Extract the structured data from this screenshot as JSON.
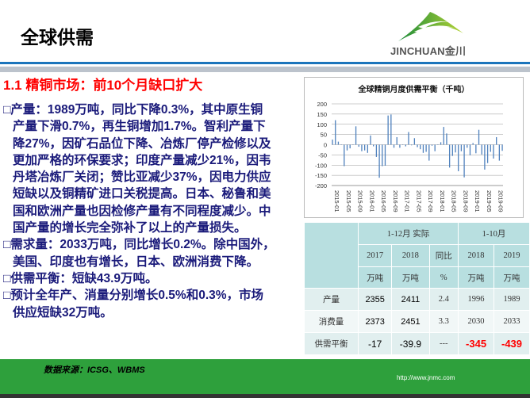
{
  "header": {
    "title": "全球供需",
    "logo_text": "JINCHUAN金川"
  },
  "subtitle": "1.1 精铜市场：前10个月缺口扩大",
  "bullets": [
    {
      "lines": [
        "□产量：1989万吨，同比下降0.3%，其中原生铜",
        "产量下滑0.7%，再生铜增加1.7%。智利产量下",
        "降27%，因矿石品位下降、冶炼厂停产检修以及",
        "更加严格的环保要求；印度产量减少21%，因韦",
        "丹塔冶炼厂关闭；赞比亚减少37%，因电力供应",
        "短缺以及铜精矿进口关税提高。日本、秘鲁和美",
        "国和欧洲产量也因检修产量有不同程度减少。中",
        "国产量的增长完全弥补了以上的产量损失。"
      ]
    },
    {
      "lines": [
        "□需求量：2033万吨，同比增长0.2%。除中国外，",
        "美国、印度也有增长，日本、欧洲消费下降。"
      ]
    },
    {
      "lines": [
        "□供需平衡：短缺43.9万吨。"
      ]
    },
    {
      "lines": [
        "□预计全年产、消量分别增长0.5%和0.3%，市场",
        "供应短缺32万吨。"
      ]
    }
  ],
  "chart_data": {
    "type": "bar",
    "title": "全球精铜月度供需平衡（千吨）",
    "ylim": [
      -200,
      200
    ],
    "yticks": [
      200,
      150,
      100,
      50,
      0,
      -50,
      -100,
      -150,
      -200
    ],
    "grid": true,
    "color": "#4f81bd",
    "xtick_labels": [
      "2015-01",
      "2015-05",
      "2015-09",
      "2016-01",
      "2016-05",
      "2016-09",
      "2017-01",
      "2017-05",
      "2017-09",
      "2018-01",
      "2018-05",
      "2018-09",
      "2019-01",
      "2019-05",
      "2019-09"
    ],
    "x_start": "2015-01",
    "values": [
      25,
      120,
      15,
      0,
      -105,
      -28,
      -18,
      0,
      90,
      -10,
      -32,
      -28,
      -40,
      45,
      -8,
      -60,
      -162,
      -105,
      -103,
      143,
      148,
      -15,
      37,
      -15,
      0,
      -8,
      62,
      -3,
      32,
      -12,
      -22,
      -40,
      -35,
      -78,
      -5,
      -32,
      0,
      12,
      87,
      55,
      -112,
      -55,
      -38,
      -130,
      -32,
      -160,
      -15,
      -52,
      8,
      -42,
      73,
      -48,
      -122,
      -90,
      -35,
      -68,
      37,
      -78,
      -30
    ]
  },
  "table": {
    "group_headers": [
      "1-12月 实际",
      "1-10月"
    ],
    "years": [
      "2017",
      "2018",
      "同比",
      "2018",
      "2019"
    ],
    "units": [
      "万吨",
      "万吨",
      "%",
      "万吨",
      "万吨"
    ],
    "rows": [
      {
        "label": "产量",
        "cells": [
          "2355",
          "2411",
          "2.4",
          "1996",
          "1989"
        ]
      },
      {
        "label": "消费量",
        "cells": [
          "2373",
          "2451",
          "3.3",
          "2030",
          "2033"
        ]
      },
      {
        "label": "供需平衡",
        "cells": [
          "-17",
          "-39.9",
          "---",
          "-345",
          "-439"
        ]
      }
    ]
  },
  "footer": {
    "source": "数据来源：ICSG、WBMS",
    "url": "http://www.jnmc.com"
  }
}
